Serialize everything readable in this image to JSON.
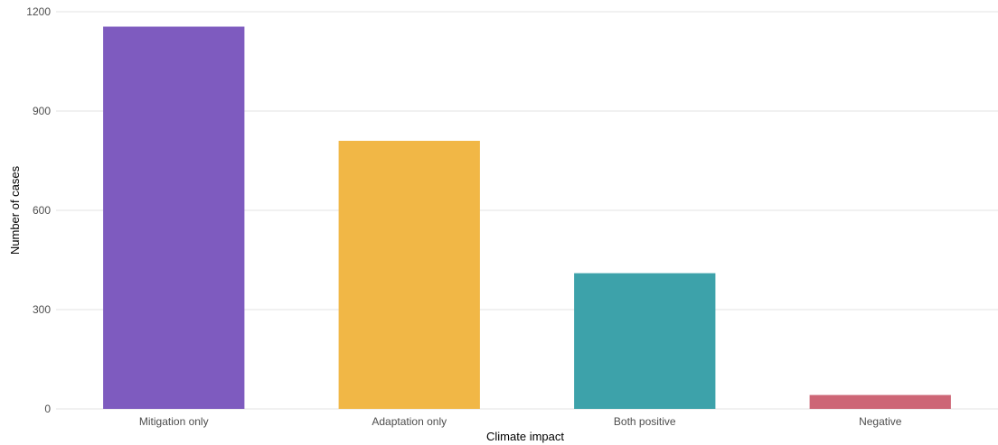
{
  "chart_data": {
    "type": "bar",
    "categories": [
      "Mitigation only",
      "Adaptation only",
      "Both positive",
      "Negative"
    ],
    "values": [
      1155,
      810,
      410,
      42
    ],
    "colors": [
      "#7e5bbf",
      "#f1b746",
      "#3da2aa",
      "#cd6676"
    ],
    "xlabel": "Climate impact",
    "ylabel": "Number of cases",
    "ylim": [
      0,
      1200
    ],
    "yticks": [
      0,
      300,
      600,
      900,
      1200
    ],
    "grid": "horizontal",
    "legend": "none"
  }
}
